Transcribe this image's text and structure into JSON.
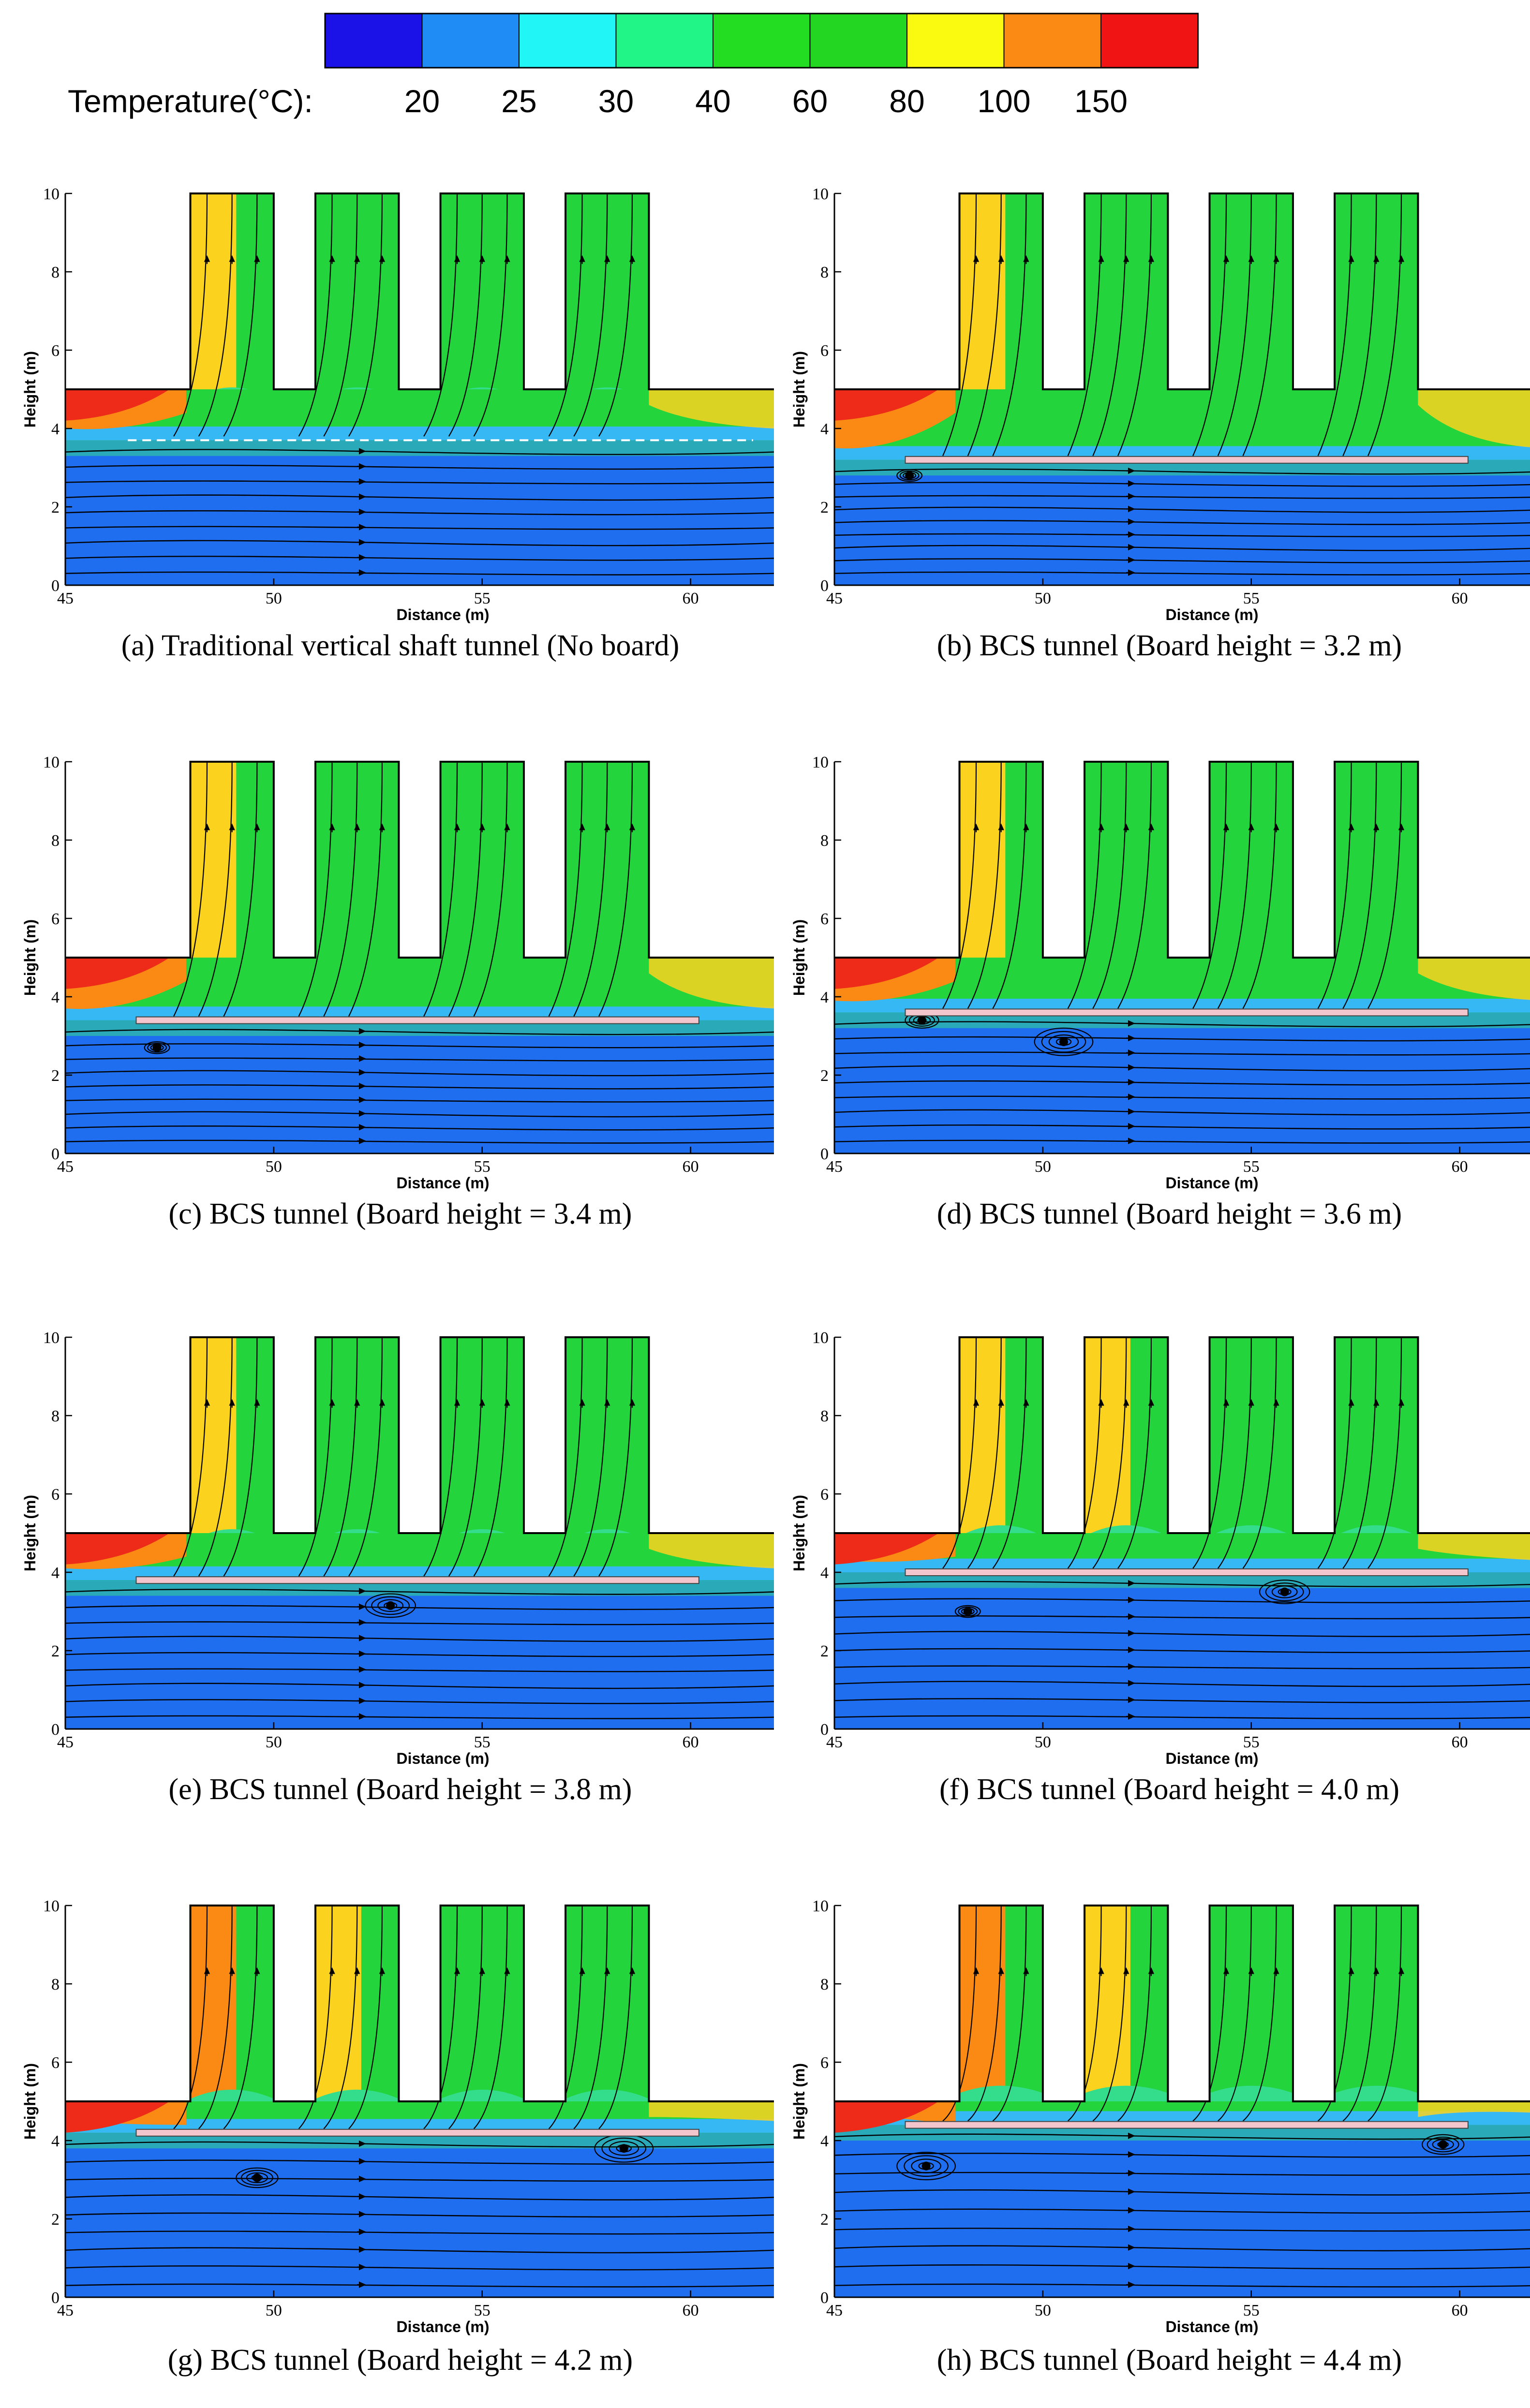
{
  "colorbar": {
    "title": "Temperature(°C):",
    "labels": [
      "20",
      "25",
      "30",
      "40",
      "60",
      "80",
      "100",
      "150"
    ],
    "colors": [
      "#1a12e6",
      "#1f8cf5",
      "#22f5f5",
      "#22f588",
      "#22dd22",
      "#22d622",
      "#fafa10",
      "#fb8a14",
      "#f01414"
    ]
  },
  "zone_colors": {
    "cold": "#1f6ef0",
    "cool": "#36b8f5",
    "mid": "#33dd8c",
    "warm": "#24d43c",
    "hot": "#fbd21e",
    "hotter": "#fa8a14",
    "hottest": "#ee2a18",
    "board": "#f2c6cc"
  },
  "chart_data": [
    {
      "type": "contour",
      "caption": "(a) Traditional vertical shaft tunnel (No board)",
      "xlabel": "Distance (m)",
      "ylabel": "Height (m)",
      "xlim": [
        45,
        62
      ],
      "ylim": [
        0,
        10
      ],
      "xticks": [
        "45",
        "50",
        "55",
        "60"
      ],
      "yticks": [
        "0",
        "2",
        "4",
        "6",
        "8",
        "10"
      ],
      "shafts": [
        [
          48,
          50
        ],
        [
          51,
          53
        ],
        [
          54,
          56
        ],
        [
          57,
          59
        ]
      ],
      "board_height": null,
      "smoke_layer": 3.7,
      "shaft_heat": [
        "hot",
        "warm",
        "warm",
        "warm"
      ],
      "vortices": []
    },
    {
      "type": "contour",
      "caption": "(b) BCS tunnel (Board height = 3.2 m)",
      "xlabel": "Distance (m)",
      "ylabel": "Height (m)",
      "xlim": [
        45,
        62
      ],
      "ylim": [
        0,
        10
      ],
      "xticks": [
        "45",
        "50",
        "55",
        "60"
      ],
      "yticks": [
        "0",
        "2",
        "4",
        "6",
        "8",
        "10"
      ],
      "shafts": [
        [
          48,
          50
        ],
        [
          51,
          53
        ],
        [
          54,
          56
        ],
        [
          57,
          59
        ]
      ],
      "board_height": 3.2,
      "board_x": [
        46.7,
        60.2
      ],
      "smoke_layer": 3.2,
      "shaft_heat": [
        "hot",
        "warm",
        "warm",
        "warm"
      ],
      "vortices": [
        [
          46.8,
          2.8,
          0.15
        ]
      ]
    },
    {
      "type": "contour",
      "caption": "(c) BCS tunnel (Board height = 3.4 m)",
      "xlabel": "Distance (m)",
      "ylabel": "Height (m)",
      "xlim": [
        45,
        62
      ],
      "ylim": [
        0,
        10
      ],
      "xticks": [
        "45",
        "50",
        "55",
        "60"
      ],
      "yticks": [
        "0",
        "2",
        "4",
        "6",
        "8",
        "10"
      ],
      "shafts": [
        [
          48,
          50
        ],
        [
          51,
          53
        ],
        [
          54,
          56
        ],
        [
          57,
          59
        ]
      ],
      "board_height": 3.4,
      "board_x": [
        46.7,
        60.2
      ],
      "smoke_layer": 3.4,
      "shaft_heat": [
        "hot",
        "warm",
        "warm",
        "warm"
      ],
      "vortices": [
        [
          47.2,
          2.7,
          0.15
        ]
      ]
    },
    {
      "type": "contour",
      "caption": "(d) BCS tunnel (Board height = 3.6 m)",
      "xlabel": "Distance (m)",
      "ylabel": "Height (m)",
      "xlim": [
        45,
        62
      ],
      "ylim": [
        0,
        10
      ],
      "xticks": [
        "45",
        "50",
        "55",
        "60"
      ],
      "yticks": [
        "0",
        "2",
        "4",
        "6",
        "8",
        "10"
      ],
      "shafts": [
        [
          48,
          50
        ],
        [
          51,
          53
        ],
        [
          54,
          56
        ],
        [
          57,
          59
        ]
      ],
      "board_height": 3.6,
      "board_x": [
        46.7,
        60.2
      ],
      "smoke_layer": 3.6,
      "shaft_heat": [
        "hot",
        "warm",
        "warm",
        "warm"
      ],
      "vortices": [
        [
          47.1,
          3.4,
          0.2
        ],
        [
          50.5,
          2.85,
          0.35
        ]
      ]
    },
    {
      "type": "contour",
      "caption": "(e) BCS tunnel (Board height = 3.8 m)",
      "xlabel": "Distance (m)",
      "ylabel": "Height (m)",
      "xlim": [
        45,
        62
      ],
      "ylim": [
        0,
        10
      ],
      "xticks": [
        "45",
        "50",
        "55",
        "60"
      ],
      "yticks": [
        "0",
        "2",
        "4",
        "6",
        "8",
        "10"
      ],
      "shafts": [
        [
          48,
          50
        ],
        [
          51,
          53
        ],
        [
          54,
          56
        ],
        [
          57,
          59
        ]
      ],
      "board_height": 3.8,
      "board_x": [
        46.7,
        60.2
      ],
      "smoke_layer": 3.8,
      "shaft_heat": [
        "hot",
        "warm",
        "warm",
        "warm"
      ],
      "vortices": [
        [
          52.8,
          3.15,
          0.3
        ]
      ]
    },
    {
      "type": "contour",
      "caption": "(f) BCS tunnel (Board height = 4.0 m)",
      "xlabel": "Distance (m)",
      "ylabel": "Height (m)",
      "xlim": [
        45,
        62
      ],
      "ylim": [
        0,
        10
      ],
      "xticks": [
        "45",
        "50",
        "55",
        "60"
      ],
      "yticks": [
        "0",
        "2",
        "4",
        "6",
        "8",
        "10"
      ],
      "shafts": [
        [
          48,
          50
        ],
        [
          51,
          53
        ],
        [
          54,
          56
        ],
        [
          57,
          59
        ]
      ],
      "board_height": 4.0,
      "board_x": [
        46.7,
        60.2
      ],
      "smoke_layer": 4.0,
      "shaft_heat": [
        "hot",
        "hot",
        "warm",
        "warm"
      ],
      "vortices": [
        [
          48.2,
          3.0,
          0.15
        ],
        [
          55.8,
          3.5,
          0.3
        ]
      ]
    },
    {
      "type": "contour",
      "caption": "(g) BCS tunnel (Board height = 4.2 m)",
      "xlabel": "Distance (m)",
      "ylabel": "Height (m)",
      "xlim": [
        45,
        62
      ],
      "ylim": [
        0,
        10
      ],
      "xticks": [
        "45",
        "50",
        "55",
        "60"
      ],
      "yticks": [
        "0",
        "2",
        "4",
        "6",
        "8",
        "10"
      ],
      "shafts": [
        [
          48,
          50
        ],
        [
          51,
          53
        ],
        [
          54,
          56
        ],
        [
          57,
          59
        ]
      ],
      "board_height": 4.2,
      "board_x": [
        46.7,
        60.2
      ],
      "smoke_layer": 4.2,
      "shaft_heat": [
        "hotter",
        "hot",
        "warm",
        "warm"
      ],
      "vortices": [
        [
          49.6,
          3.05,
          0.25
        ],
        [
          58.4,
          3.8,
          0.35
        ]
      ]
    },
    {
      "type": "contour",
      "caption": "(h) BCS tunnel (Board height = 4.4 m)",
      "xlabel": "Distance (m)",
      "ylabel": "Height (m)",
      "xlim": [
        45,
        62
      ],
      "ylim": [
        0,
        10
      ],
      "xticks": [
        "45",
        "50",
        "55",
        "60"
      ],
      "yticks": [
        "0",
        "2",
        "4",
        "6",
        "8",
        "10"
      ],
      "shafts": [
        [
          48,
          50
        ],
        [
          51,
          53
        ],
        [
          54,
          56
        ],
        [
          57,
          59
        ]
      ],
      "board_height": 4.4,
      "board_x": [
        46.7,
        60.2
      ],
      "smoke_layer": 4.4,
      "shaft_heat": [
        "hotter",
        "hot",
        "warm",
        "warm"
      ],
      "vortices": [
        [
          47.2,
          3.35,
          0.35
        ],
        [
          59.6,
          3.9,
          0.25
        ]
      ]
    }
  ]
}
